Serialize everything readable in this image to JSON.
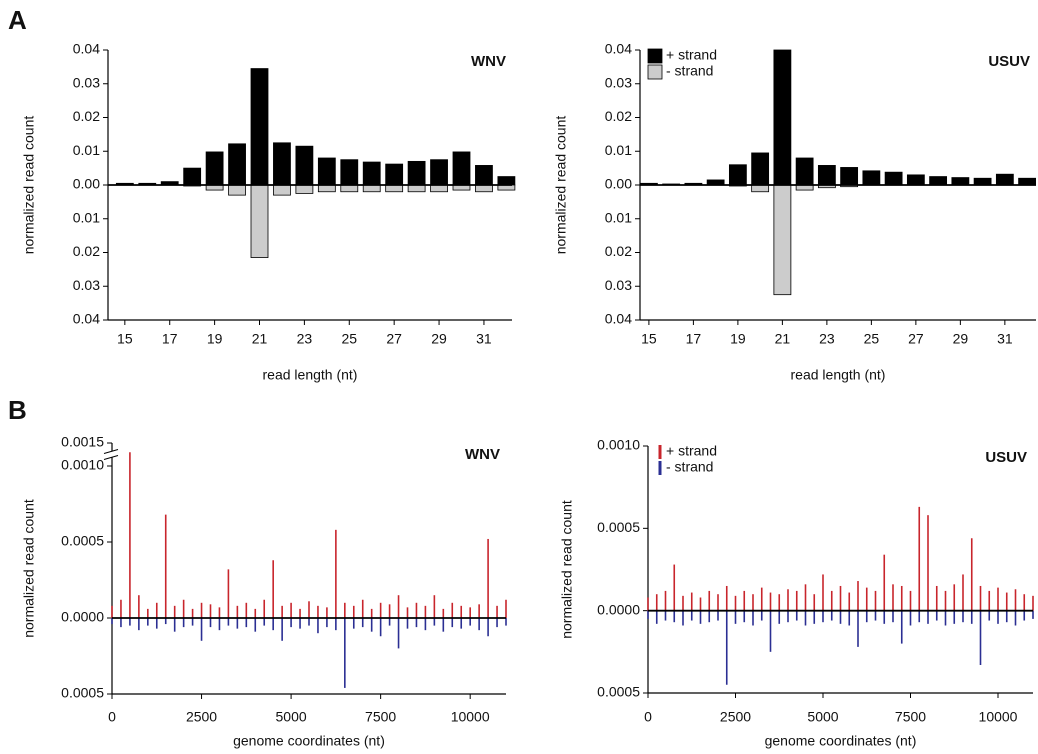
{
  "chart_data": [
    {
      "type": "bar",
      "panel": "A",
      "title": "WNV",
      "xlabel": "read length (nt)",
      "ylabel": "normalized read count",
      "x": [
        15,
        16,
        17,
        18,
        19,
        20,
        21,
        22,
        23,
        24,
        25,
        26,
        27,
        28,
        29,
        30,
        31,
        32
      ],
      "xlim": [
        14.25,
        32.25
      ],
      "xticks": [
        15,
        17,
        19,
        21,
        23,
        25,
        27,
        29,
        31
      ],
      "ylim": [
        -0.04,
        0.04
      ],
      "yticks": [
        0.04,
        0.03,
        0.02,
        0.01,
        {
          "value": 0,
          "label": "0.00"
        },
        {
          "value": -0.01,
          "label": "0.01"
        },
        {
          "value": -0.02,
          "label": "0.02"
        },
        {
          "value": -0.03,
          "label": "0.03"
        },
        {
          "value": -0.04,
          "label": "0.04"
        }
      ],
      "series": [
        {
          "color": "#000000",
          "values": [
            0.0005,
            0.0005,
            0.001,
            0.005,
            0.0098,
            0.0122,
            0.0345,
            0.0125,
            0.0115,
            0.008,
            0.0075,
            0.0068,
            0.0062,
            0.007,
            0.0075,
            0.0098,
            0.0058,
            0.0025
          ]
        },
        {
          "color": "#cccccc",
          "values": [
            0,
            0,
            0,
            -0.0003,
            -0.0015,
            -0.003,
            -0.0215,
            -0.003,
            -0.0025,
            -0.002,
            -0.002,
            -0.002,
            -0.002,
            -0.002,
            -0.002,
            -0.0015,
            -0.002,
            -0.0015
          ]
        }
      ]
    },
    {
      "type": "bar",
      "title": "USUV",
      "xlabel": "read length (nt)",
      "ylabel": "normalized read count",
      "legend": "upper left",
      "x": [
        15,
        16,
        17,
        18,
        19,
        20,
        21,
        22,
        23,
        24,
        25,
        26,
        27,
        28,
        29,
        30,
        31,
        32
      ],
      "xlim": [
        14.6,
        32.4
      ],
      "xticks": [
        15,
        17,
        19,
        21,
        23,
        25,
        27,
        29,
        31
      ],
      "ylim": [
        -0.04,
        0.04
      ],
      "yticks": [
        0.04,
        0.03,
        0.02,
        0.01,
        {
          "value": 0,
          "label": "0.00"
        },
        {
          "value": -0.01,
          "label": "0.01"
        },
        {
          "value": -0.02,
          "label": "0.02"
        },
        {
          "value": -0.03,
          "label": "0.03"
        },
        {
          "value": -0.04,
          "label": "0.04"
        }
      ],
      "series": [
        {
          "name": "+ strand",
          "color": "#000000",
          "values": [
            0.0005,
            0.0003,
            0.0005,
            0.0015,
            0.006,
            0.0095,
            0.04,
            0.008,
            0.0058,
            0.0052,
            0.0042,
            0.0038,
            0.003,
            0.0025,
            0.0022,
            0.002,
            0.0032,
            0.002
          ]
        },
        {
          "name": "- strand",
          "color": "#cccccc",
          "values": [
            0,
            0,
            0,
            0,
            -0.0003,
            -0.002,
            -0.0325,
            -0.0015,
            -0.0008,
            -0.0005,
            0,
            0,
            0,
            0,
            0,
            0,
            0,
            0
          ]
        }
      ]
    },
    {
      "type": "stem",
      "panel": "B",
      "title": "WNV",
      "xlabel": "genome coordinates (nt)",
      "ylabel": "normalized read count",
      "x": [
        0,
        250,
        500,
        750,
        1000,
        1250,
        1500,
        1750,
        2000,
        2250,
        2500,
        2750,
        3000,
        3250,
        3500,
        3750,
        4000,
        4250,
        4500,
        4750,
        5000,
        5250,
        5500,
        5750,
        6000,
        6250,
        6500,
        6750,
        7000,
        7250,
        7500,
        7750,
        8000,
        8250,
        8500,
        8750,
        9000,
        9250,
        9500,
        9750,
        10000,
        10250,
        10500,
        10750,
        11000
      ],
      "xlim": [
        0,
        11000
      ],
      "xticks": [
        0,
        2500,
        5000,
        7500,
        10000
      ],
      "ylim": [
        -0.0005,
        0.0015
      ],
      "y_break": [
        0.001,
        0.0015
      ],
      "yticks": [
        0.0015,
        {
          "value": 0.001,
          "label": "0.0010"
        },
        0.0005,
        {
          "value": 0,
          "label": "0.0000"
        },
        {
          "value": -0.0005,
          "label": "0.0005"
        }
      ],
      "series": [
        {
          "color": "#c8252c",
          "values": [
            8e-05,
            0.00012,
            0.0013,
            0.00015,
            6e-05,
            0.0001,
            0.00068,
            8e-05,
            0.00012,
            6e-05,
            0.0001,
            9e-05,
            7e-05,
            0.00032,
            8e-05,
            0.0001,
            6e-05,
            0.00012,
            0.00038,
            8e-05,
            0.0001,
            6e-05,
            0.00011,
            8e-05,
            7e-05,
            0.00058,
            0.0001,
            8e-05,
            0.00012,
            6e-05,
            0.0001,
            9e-05,
            0.00015,
            7e-05,
            0.0001,
            8e-05,
            0.00015,
            6e-05,
            0.0001,
            8e-05,
            7e-05,
            9e-05,
            0.00052,
            8e-05,
            0.00012
          ]
        },
        {
          "color": "#2b2f93",
          "values": [
            -4e-05,
            -6e-05,
            -5e-05,
            -8e-05,
            -5e-05,
            -7e-05,
            -4e-05,
            -9e-05,
            -6e-05,
            -5e-05,
            -0.00015,
            -6e-05,
            -8e-05,
            -5e-05,
            -7e-05,
            -6e-05,
            -9e-05,
            -5e-05,
            -8e-05,
            -0.00015,
            -6e-05,
            -7e-05,
            -5e-05,
            -0.0001,
            -6e-05,
            -8e-05,
            -0.00046,
            -7e-05,
            -6e-05,
            -9e-05,
            -0.00012,
            -5e-05,
            -0.0002,
            -7e-05,
            -6e-05,
            -8e-05,
            -5e-05,
            -9e-05,
            -6e-05,
            -7e-05,
            -5e-05,
            -8e-05,
            -0.00012,
            -6e-05,
            -5e-05
          ]
        }
      ]
    },
    {
      "type": "stem",
      "title": "USUV",
      "xlabel": "genome coordinates (nt)",
      "ylabel": "normalized read count",
      "legend": "upper left",
      "x": [
        0,
        250,
        500,
        750,
        1000,
        1250,
        1500,
        1750,
        2000,
        2250,
        2500,
        2750,
        3000,
        3250,
        3500,
        3750,
        4000,
        4250,
        4500,
        4750,
        5000,
        5250,
        5500,
        5750,
        6000,
        6250,
        6500,
        6750,
        7000,
        7250,
        7500,
        7750,
        8000,
        8250,
        8500,
        8750,
        9000,
        9250,
        9500,
        9750,
        10000,
        10250,
        10500,
        10750,
        11000
      ],
      "xlim": [
        0,
        11000
      ],
      "xticks": [
        0,
        2500,
        5000,
        7500,
        10000
      ],
      "ylim": [
        -0.0005,
        0.001
      ],
      "yticks": [
        {
          "value": 0.001,
          "label": "0.0010"
        },
        0.0005,
        {
          "value": 0,
          "label": "0.0000"
        },
        {
          "value": -0.0005,
          "label": "0.0005"
        }
      ],
      "series": [
        {
          "name": "+ strand",
          "color": "#c8252c",
          "values": [
            8e-05,
            0.0001,
            0.00012,
            0.00028,
            9e-05,
            0.00011,
            8e-05,
            0.00012,
            0.0001,
            0.00015,
            9e-05,
            0.00012,
            0.0001,
            0.00014,
            0.00011,
            0.0001,
            0.00013,
            0.00012,
            0.00016,
            0.0001,
            0.00022,
            0.00012,
            0.00015,
            0.00011,
            0.00018,
            0.00014,
            0.00012,
            0.00034,
            0.00016,
            0.00015,
            0.00012,
            0.00063,
            0.00058,
            0.00015,
            0.00012,
            0.00016,
            0.00022,
            0.00044,
            0.00015,
            0.00012,
            0.00014,
            0.00011,
            0.00013,
            0.0001,
            9e-05
          ]
        },
        {
          "name": "- strand",
          "color": "#2b2f93",
          "values": [
            -5e-05,
            -8e-05,
            -6e-05,
            -7e-05,
            -9e-05,
            -6e-05,
            -8e-05,
            -7e-05,
            -6e-05,
            -0.00045,
            -8e-05,
            -7e-05,
            -9e-05,
            -6e-05,
            -0.00025,
            -8e-05,
            -7e-05,
            -6e-05,
            -9e-05,
            -8e-05,
            -7e-05,
            -6e-05,
            -8e-05,
            -9e-05,
            -0.00022,
            -7e-05,
            -6e-05,
            -8e-05,
            -7e-05,
            -0.0002,
            -9e-05,
            -7e-05,
            -8e-05,
            -6e-05,
            -9e-05,
            -8e-05,
            -7e-05,
            -8e-05,
            -0.00033,
            -6e-05,
            -8e-05,
            -7e-05,
            -9e-05,
            -6e-05,
            -5e-05
          ]
        }
      ]
    }
  ]
}
